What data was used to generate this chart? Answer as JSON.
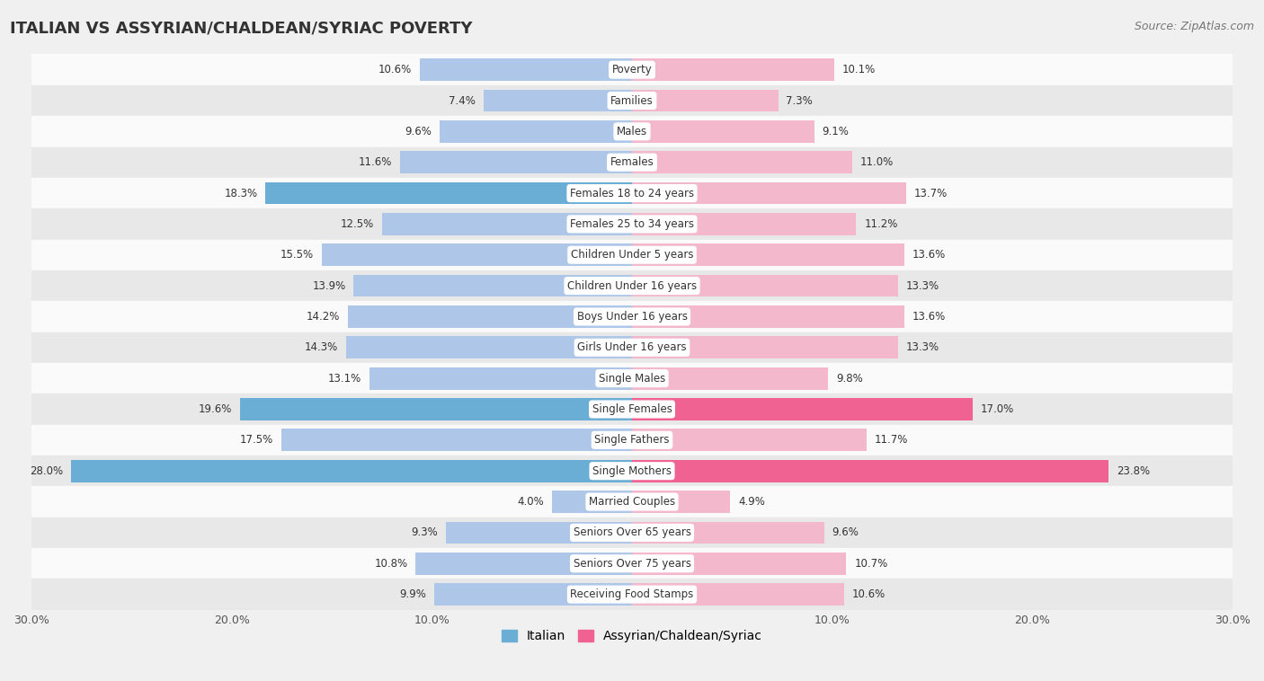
{
  "title": "ITALIAN VS ASSYRIAN/CHALDEAN/SYRIAC POVERTY",
  "source": "Source: ZipAtlas.com",
  "categories": [
    "Poverty",
    "Families",
    "Males",
    "Females",
    "Females 18 to 24 years",
    "Females 25 to 34 years",
    "Children Under 5 years",
    "Children Under 16 years",
    "Boys Under 16 years",
    "Girls Under 16 years",
    "Single Males",
    "Single Females",
    "Single Fathers",
    "Single Mothers",
    "Married Couples",
    "Seniors Over 65 years",
    "Seniors Over 75 years",
    "Receiving Food Stamps"
  ],
  "italian_values": [
    10.6,
    7.4,
    9.6,
    11.6,
    18.3,
    12.5,
    15.5,
    13.9,
    14.2,
    14.3,
    13.1,
    19.6,
    17.5,
    28.0,
    4.0,
    9.3,
    10.8,
    9.9
  ],
  "assyrian_values": [
    10.1,
    7.3,
    9.1,
    11.0,
    13.7,
    11.2,
    13.6,
    13.3,
    13.6,
    13.3,
    9.8,
    17.0,
    11.7,
    23.8,
    4.9,
    9.6,
    10.7,
    10.6
  ],
  "italian_color_normal": "#aec6e8",
  "italian_color_highlight": "#6aaed6",
  "assyrian_color_normal": "#f4b8cc",
  "assyrian_color_highlight": "#f06292",
  "italian_highlights": [
    4,
    11,
    13
  ],
  "assyrian_highlights": [
    11,
    13
  ],
  "xlim": 30.0,
  "background_color": "#f0f0f0",
  "row_color_light": "#fafafa",
  "row_color_dark": "#e8e8e8",
  "bar_height": 0.72,
  "legend_italian": "Italian",
  "legend_assyrian": "Assyrian/Chaldean/Syriac"
}
